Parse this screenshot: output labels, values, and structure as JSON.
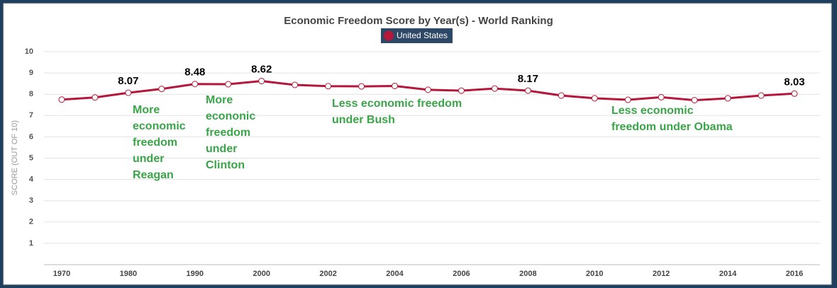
{
  "chart_data": {
    "type": "line",
    "title": "Economic Freedom Score by Year(s) - World Ranking",
    "y_label": "SCORE (OUT OF 10)",
    "categories": [
      "1970",
      null,
      "1980",
      null,
      "1990",
      null,
      "2000",
      null,
      "2002",
      null,
      "2004",
      null,
      "2006",
      null,
      "2008",
      null,
      "2010",
      null,
      "2012",
      null,
      "2014",
      null,
      "2016"
    ],
    "series": [
      {
        "name": "United States",
        "color": "#b5173b",
        "values": [
          7.75,
          7.85,
          8.07,
          8.25,
          8.48,
          8.47,
          8.62,
          8.44,
          8.38,
          8.37,
          8.39,
          8.21,
          8.17,
          8.27,
          8.17,
          7.94,
          7.81,
          7.74,
          7.86,
          7.72,
          7.81,
          7.94,
          8.03
        ],
        "value_labels": [
          null,
          null,
          "8.07",
          null,
          "8.48",
          null,
          "8.62",
          null,
          null,
          null,
          null,
          null,
          null,
          null,
          "8.17",
          null,
          null,
          null,
          null,
          null,
          null,
          null,
          "8.03"
        ]
      }
    ],
    "ylim": [
      0,
      10
    ],
    "yticks": [
      1,
      2,
      3,
      4,
      5,
      6,
      7,
      8,
      9,
      10
    ],
    "grid": true,
    "annotations": [
      [
        "More",
        "economic",
        "freedom",
        "under",
        "Reagan"
      ],
      [
        "More",
        "econonic",
        "freedom",
        "under",
        "Clinton"
      ],
      [
        "Less economic freedom",
        "under Bush"
      ],
      [
        "Less economic",
        "freedom under Obama"
      ]
    ],
    "annotation_color": "#3aa548"
  }
}
